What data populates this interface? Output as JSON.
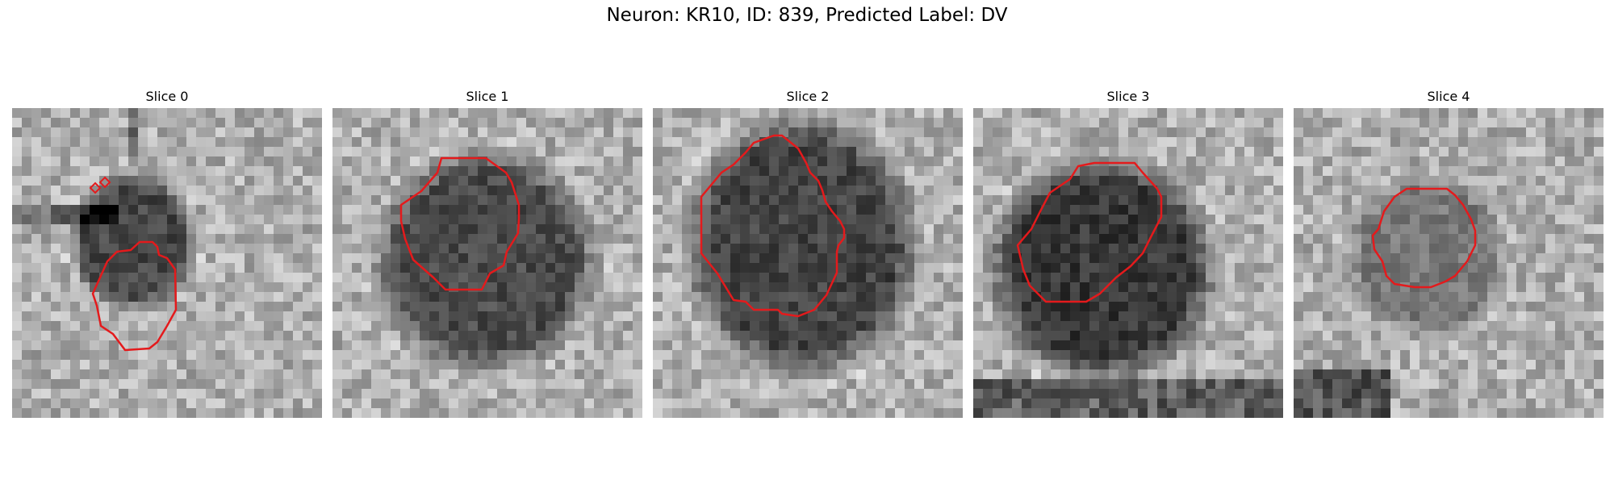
{
  "figure": {
    "title": "Neuron: KR10, ID: 839, Predicted Label: DV"
  },
  "colors": {
    "contour": "#e41a1c",
    "background": "#ffffff"
  },
  "panels": [
    {
      "title": "Slice 0",
      "seed": 11
    },
    {
      "title": "Slice 1",
      "seed": 23
    },
    {
      "title": "Slice 2",
      "seed": 37
    },
    {
      "title": "Slice 3",
      "seed": 41
    },
    {
      "title": "Slice 4",
      "seed": 59
    }
  ]
}
